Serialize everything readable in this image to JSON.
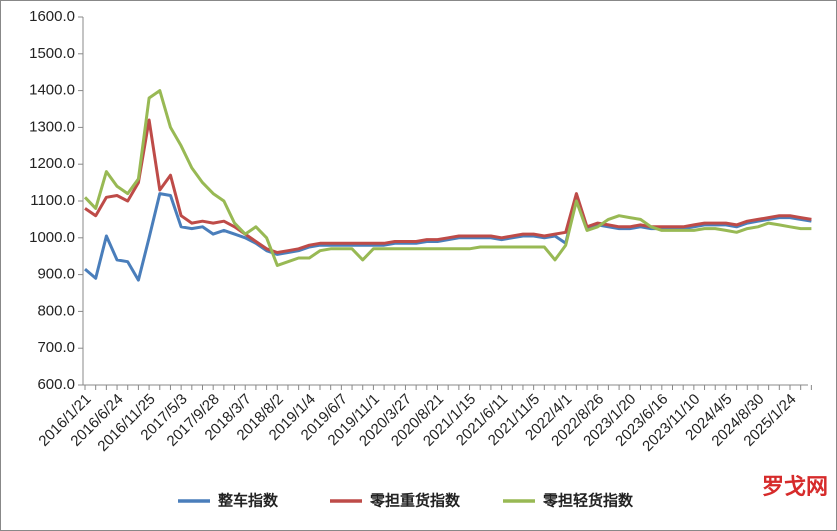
{
  "chart_data": {
    "type": "line",
    "categories": [
      "2016/1/21",
      null,
      null,
      "2016/6/24",
      null,
      null,
      "2016/11/25",
      null,
      null,
      "2017/5/3",
      null,
      null,
      "2017/9/28",
      null,
      null,
      "2018/3/7",
      null,
      null,
      "2018/8/2",
      null,
      null,
      "2019/1/4",
      null,
      null,
      "2019/6/7",
      null,
      null,
      "2019/11/1",
      null,
      null,
      "2020/3/27",
      null,
      null,
      "2020/8/21",
      null,
      null,
      "2021/1/15",
      null,
      null,
      "2021/6/11",
      null,
      null,
      "2021/11/5",
      null,
      null,
      "2022/4/1",
      null,
      null,
      "2022/8/26",
      null,
      null,
      "2023/1/20",
      null,
      null,
      "2023/6/16",
      null,
      null,
      "2023/11/10",
      null,
      null,
      "2024/4/5",
      null,
      null,
      "2024/8/30",
      null,
      null,
      "2025/1/24",
      null,
      null
    ],
    "series": [
      {
        "name": "整车指数",
        "color": "#4a7ebb",
        "values": [
          915,
          890,
          1005,
          940,
          935,
          885,
          1000,
          1120,
          1115,
          1030,
          1025,
          1030,
          1010,
          1020,
          1010,
          1000,
          985,
          965,
          955,
          960,
          965,
          975,
          980,
          980,
          980,
          980,
          980,
          980,
          980,
          985,
          985,
          985,
          990,
          990,
          995,
          1000,
          1000,
          1000,
          1000,
          995,
          1000,
          1005,
          1005,
          1000,
          1005,
          985,
          1110,
          1025,
          1035,
          1030,
          1025,
          1025,
          1030,
          1025,
          1025,
          1025,
          1025,
          1030,
          1035,
          1035,
          1035,
          1030,
          1040,
          1045,
          1050,
          1055,
          1055,
          1050,
          1045
        ]
      },
      {
        "name": "零担重货指数",
        "color": "#be4b48",
        "values": [
          1080,
          1060,
          1110,
          1115,
          1100,
          1150,
          1320,
          1130,
          1170,
          1060,
          1040,
          1045,
          1040,
          1045,
          1030,
          1010,
          990,
          970,
          960,
          965,
          970,
          980,
          985,
          985,
          985,
          985,
          985,
          985,
          985,
          990,
          990,
          990,
          995,
          995,
          1000,
          1005,
          1005,
          1005,
          1005,
          1000,
          1005,
          1010,
          1010,
          1005,
          1010,
          1015,
          1120,
          1030,
          1040,
          1035,
          1030,
          1030,
          1035,
          1030,
          1030,
          1030,
          1030,
          1035,
          1040,
          1040,
          1040,
          1035,
          1045,
          1050,
          1055,
          1060,
          1060,
          1055,
          1050
        ]
      },
      {
        "name": "零担轻货指数",
        "color": "#98b954",
        "values": [
          1110,
          1080,
          1180,
          1140,
          1120,
          1160,
          1380,
          1400,
          1300,
          1250,
          1190,
          1150,
          1120,
          1100,
          1040,
          1010,
          1030,
          1000,
          925,
          935,
          945,
          945,
          965,
          970,
          970,
          970,
          940,
          970,
          970,
          970,
          970,
          970,
          970,
          970,
          970,
          970,
          970,
          975,
          975,
          975,
          975,
          975,
          975,
          975,
          940,
          980,
          1100,
          1020,
          1030,
          1050,
          1060,
          1055,
          1050,
          1030,
          1020,
          1020,
          1020,
          1020,
          1025,
          1025,
          1020,
          1015,
          1025,
          1030,
          1040,
          1035,
          1030,
          1025,
          1025
        ]
      }
    ],
    "ylim": [
      600,
      1600
    ],
    "yticks": [
      {
        "value": 600,
        "label": "600.0"
      },
      {
        "value": 700,
        "label": "700.0"
      },
      {
        "value": 800,
        "label": "800.0"
      },
      {
        "value": 900,
        "label": "900.0"
      },
      {
        "value": 1000,
        "label": "1000.0"
      },
      {
        "value": 1100,
        "label": "1100.0"
      },
      {
        "value": 1200,
        "label": "1200.0"
      },
      {
        "value": 1300,
        "label": "1300.0"
      },
      {
        "value": 1400,
        "label": "1400.0"
      },
      {
        "value": 1500,
        "label": "1500.0"
      },
      {
        "value": 1600,
        "label": "1600.0"
      }
    ],
    "grid": false,
    "legend": "bottom",
    "watermark": "罗戈网"
  }
}
